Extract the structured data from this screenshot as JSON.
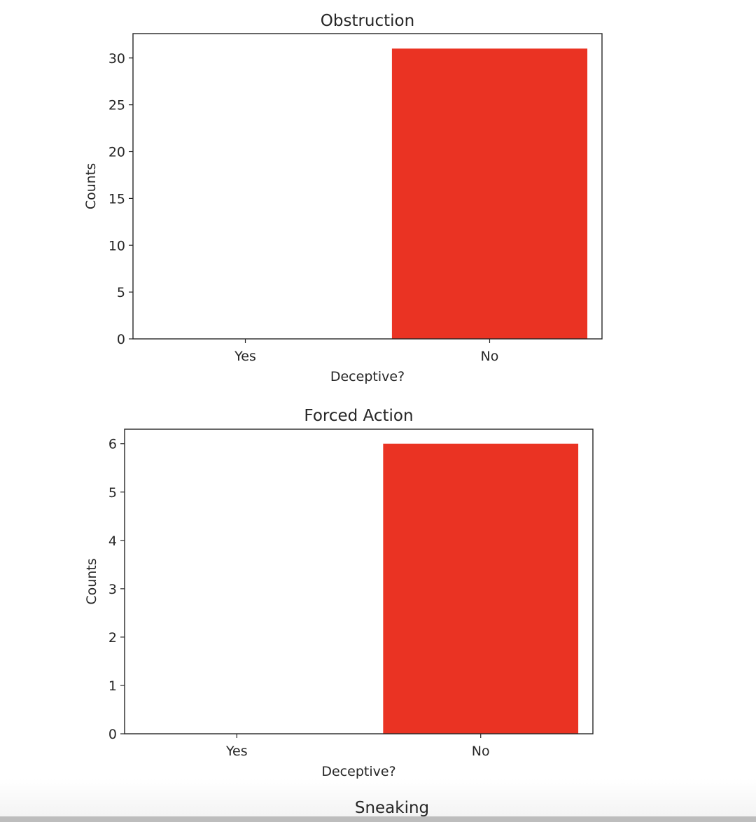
{
  "colors": {
    "bar": "#ea3323",
    "axis": "#262626",
    "background": "#ffffff"
  },
  "chart_data": [
    {
      "type": "bar",
      "title": "Obstruction",
      "xlabel": "Deceptive?",
      "ylabel": "Counts",
      "categories": [
        "Yes",
        "No"
      ],
      "values": [
        0,
        31
      ],
      "ylim": [
        0,
        32.6
      ],
      "yticks": [
        0,
        5,
        10,
        15,
        20,
        25,
        30
      ],
      "grid": false
    },
    {
      "type": "bar",
      "title": "Forced Action",
      "xlabel": "Deceptive?",
      "ylabel": "Counts",
      "categories": [
        "Yes",
        "No"
      ],
      "values": [
        0,
        6
      ],
      "ylim": [
        0,
        6.3
      ],
      "yticks": [
        0,
        1,
        2,
        3,
        4,
        5,
        6
      ],
      "grid": false
    }
  ],
  "next_chart": {
    "title": "Sneaking"
  }
}
